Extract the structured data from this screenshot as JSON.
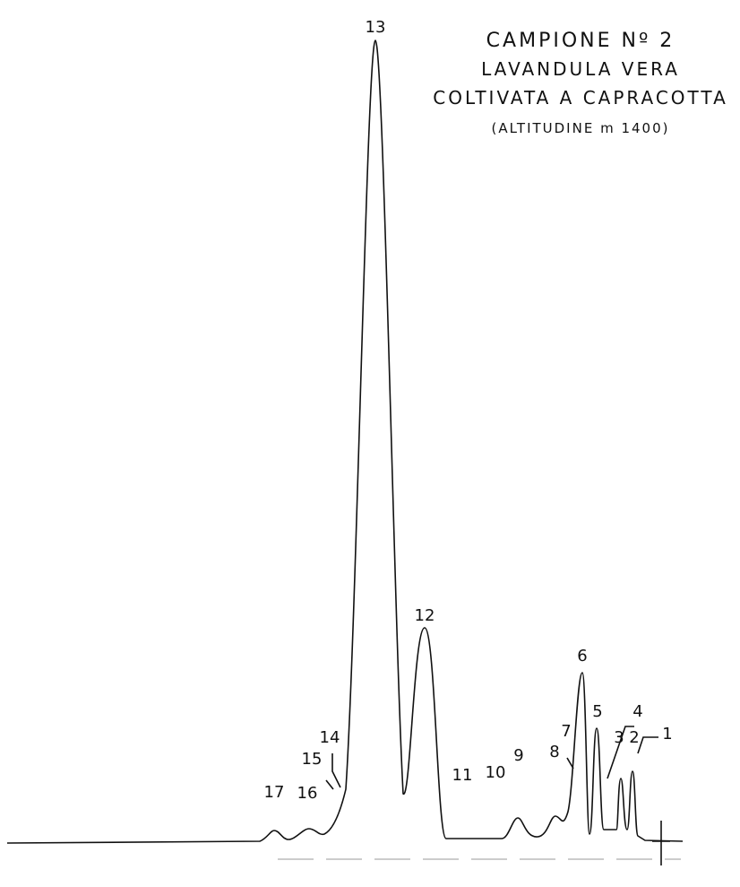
{
  "title": [
    "CAMPIONE Nº 2",
    "LAVANDULA VERA",
    "COLTIVATA A CAPRACOTTA",
    "(ALTITUDINE m 1400)"
  ],
  "peak_labels": [
    "1",
    "2",
    "3",
    "4",
    "5",
    "6",
    "7",
    "8",
    "9",
    "10",
    "11",
    "12",
    "13",
    "14",
    "15",
    "16",
    "17"
  ]
}
